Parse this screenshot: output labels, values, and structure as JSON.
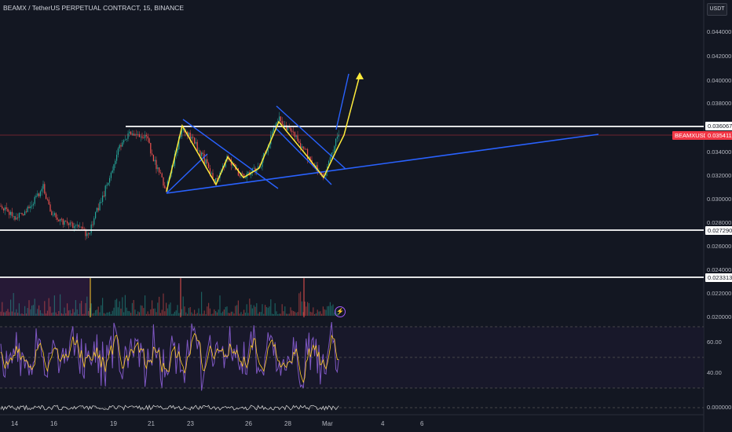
{
  "header": {
    "title": "BEAMX / TetherUS PERPETUAL CONTRACT, 15, BINANCE",
    "currency": "USDT"
  },
  "y_axis_ticks": [
    "0.044000",
    "0.042000",
    "0.040000",
    "0.038000",
    "0.034000",
    "0.032000",
    "0.030000",
    "0.028000",
    "0.026000",
    "0.024000",
    "0.022000",
    "0.020000"
  ],
  "oscillator_ticks": [
    "60.00",
    "40.00"
  ],
  "bottom_tick": "0.000000",
  "x_axis_ticks": [
    "14",
    "16",
    "19",
    "21",
    "23",
    "26",
    "28",
    "Mar",
    "4",
    "6"
  ],
  "price_tags": {
    "resistance": "0.036067",
    "current_symbol": "BEAMXUSDT.P",
    "current_price": "0.035411",
    "support_1": "0.027290",
    "support_2": "0.023313"
  },
  "colors": {
    "background": "#131722",
    "up": "#26a69a",
    "down": "#ef5350",
    "channel": "#2962ff",
    "pattern": "#ffeb3b",
    "oscillator": "#7e57c2",
    "level": "#ffffff"
  },
  "event_icon": "lightning-icon"
}
